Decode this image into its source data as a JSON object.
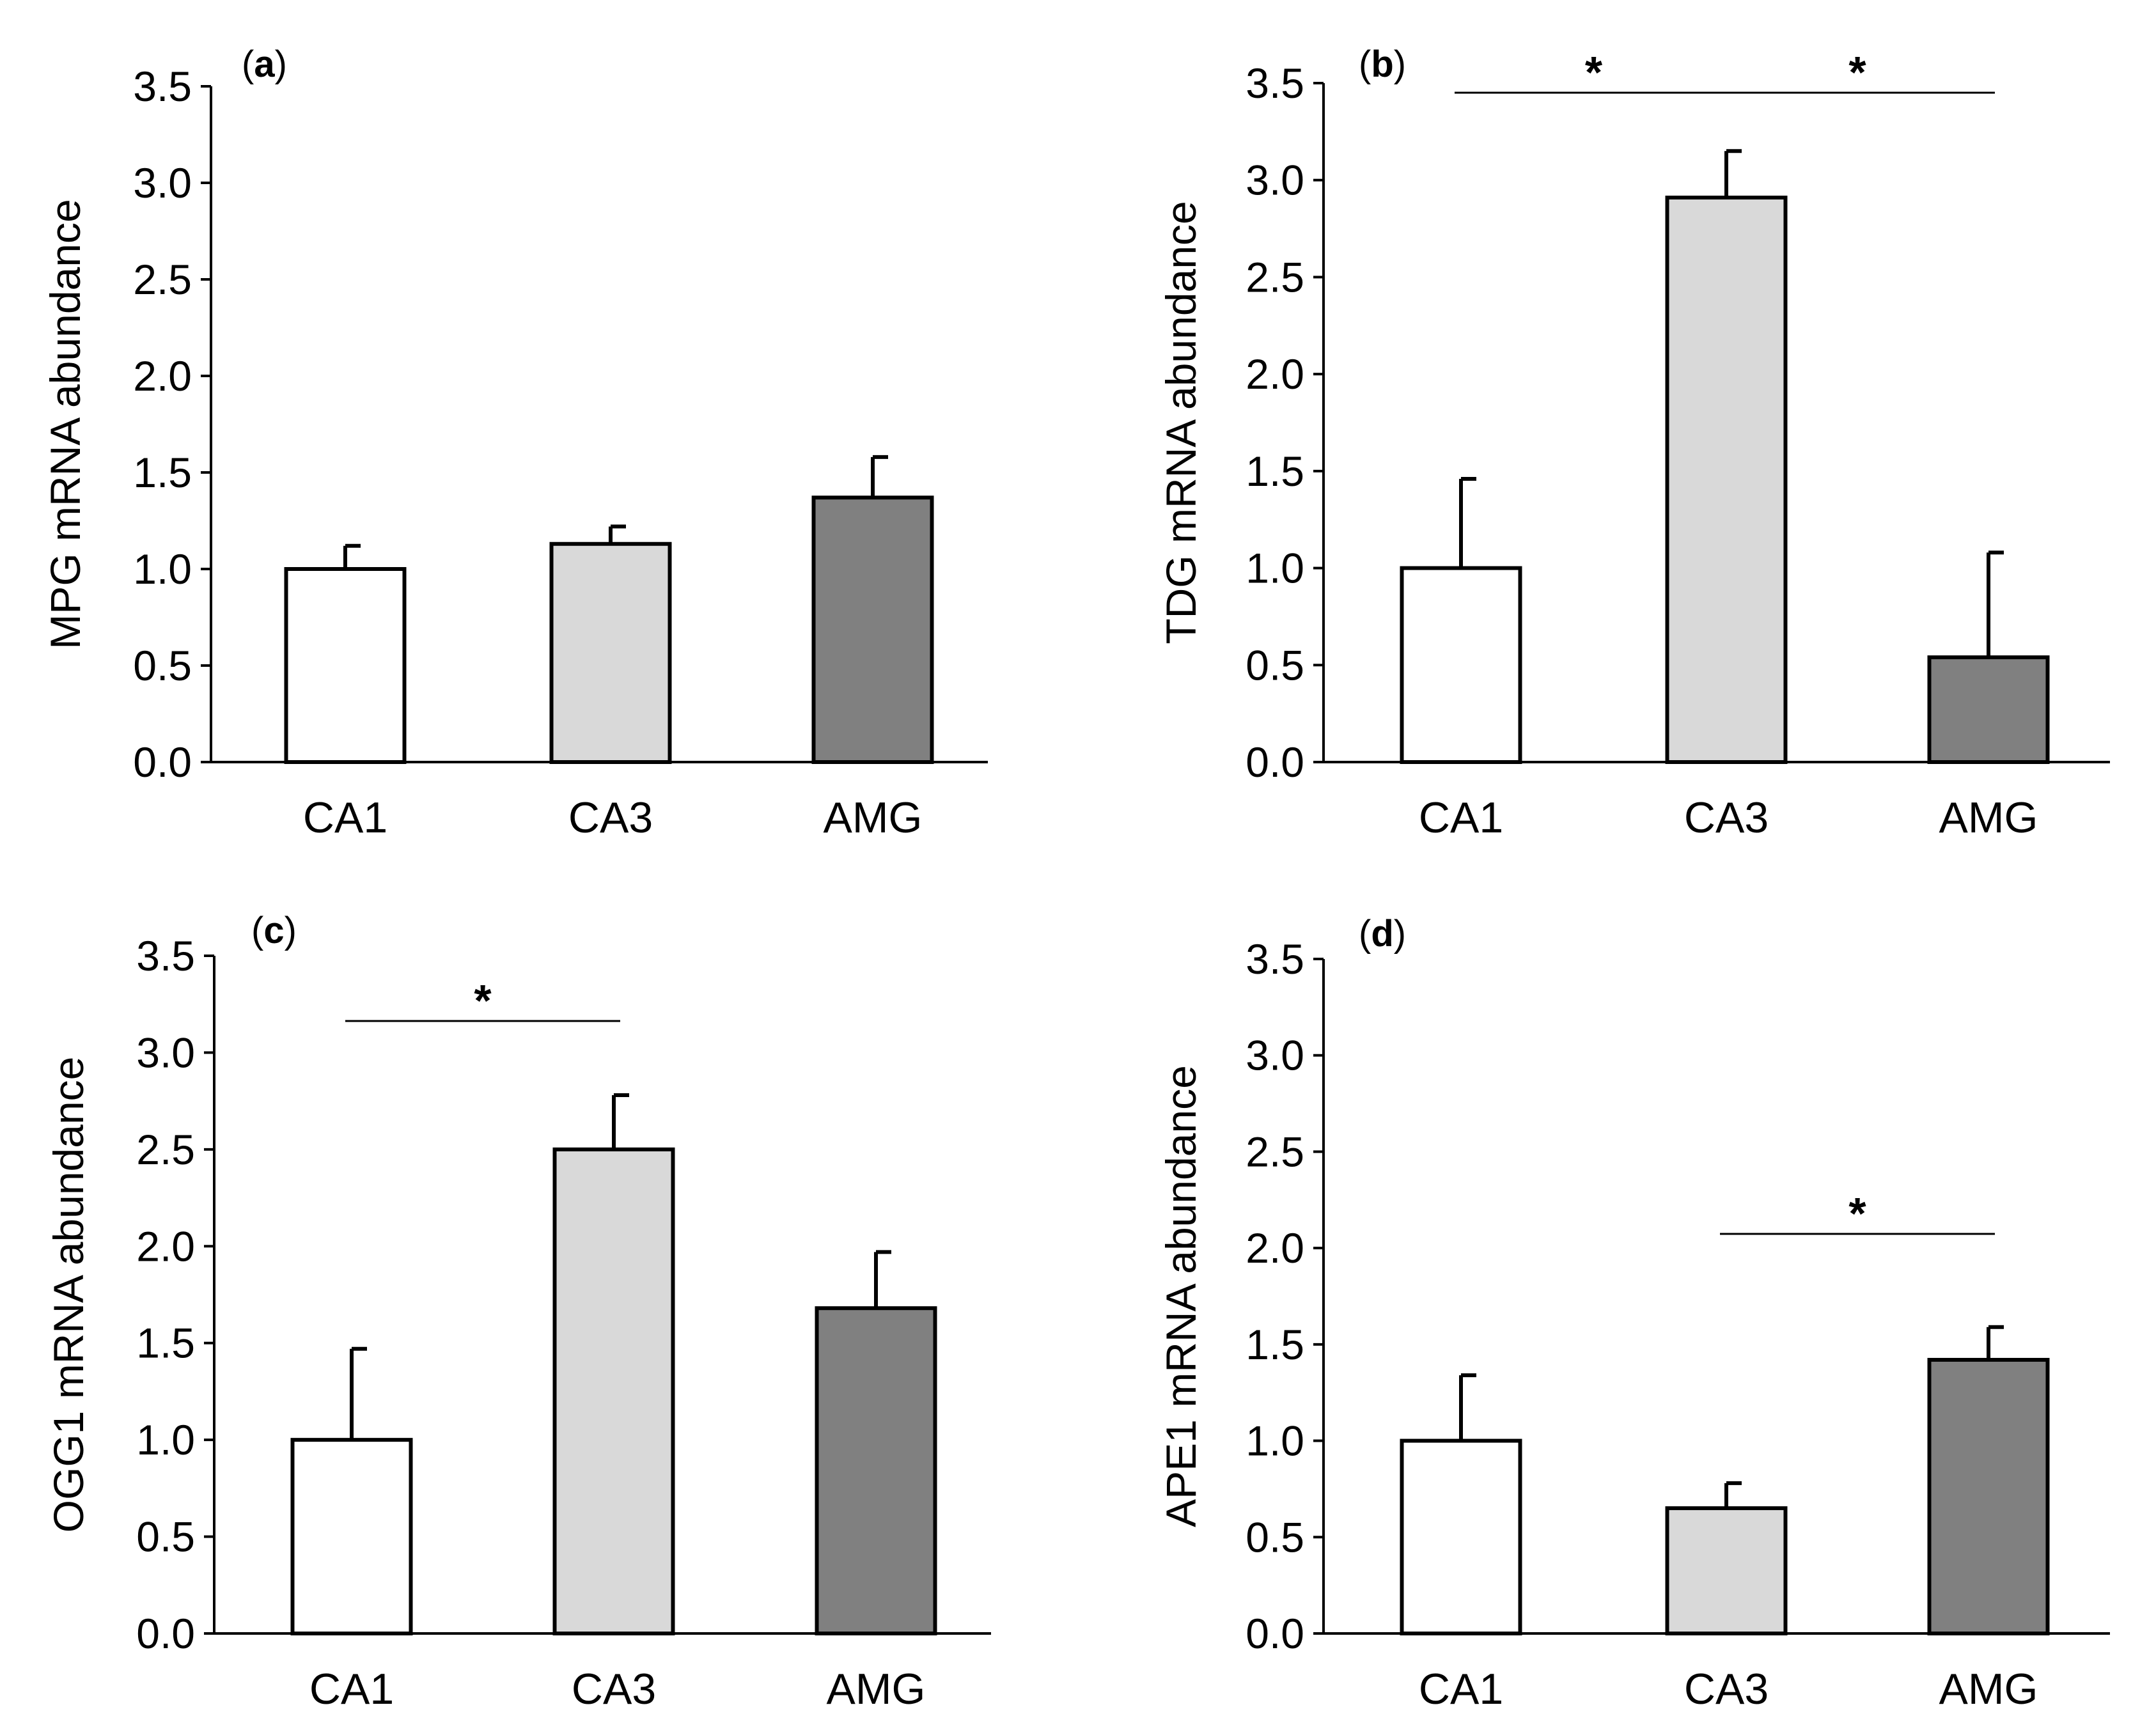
{
  "chart_data": [
    {
      "type": "bar",
      "panel": "a",
      "ylabel": "MPG mRNA abundance",
      "ylim": [
        0,
        3.5
      ],
      "yticks": [
        "0.0",
        "0.5",
        "1.0",
        "1.5",
        "2.0",
        "2.5",
        "3.0",
        "3.5"
      ],
      "categories": [
        "CA1",
        "CA3",
        "AMG"
      ],
      "values": [
        1.0,
        1.13,
        1.37
      ],
      "errors": [
        0.12,
        0.09,
        0.21
      ],
      "colors": [
        "#ffffff",
        "#d9d9d9",
        "#808080"
      ],
      "significance": []
    },
    {
      "type": "bar",
      "panel": "b",
      "ylabel": "TDG mRNA abundance",
      "ylim": [
        0,
        3.5
      ],
      "yticks": [
        "0.0",
        "0.5",
        "1.0",
        "1.5",
        "2.0",
        "2.5",
        "3.0",
        "3.5"
      ],
      "categories": [
        "CA1",
        "CA3",
        "AMG"
      ],
      "values": [
        1.0,
        2.91,
        0.54
      ],
      "errors": [
        0.46,
        0.24,
        0.54
      ],
      "colors": [
        "#ffffff",
        "#d9d9d9",
        "#808080"
      ],
      "significance": [
        {
          "from": 0,
          "to": 1,
          "label": "*"
        },
        {
          "from": 1,
          "to": 2,
          "label": "*"
        }
      ]
    },
    {
      "type": "bar",
      "panel": "c",
      "ylabel": "OGG1 mRNA abundance",
      "ylim": [
        0,
        3.5
      ],
      "yticks": [
        "0.0",
        "0.5",
        "1.0",
        "1.5",
        "2.0",
        "2.5",
        "3.0",
        "3.5"
      ],
      "categories": [
        "CA1",
        "CA3",
        "AMG"
      ],
      "values": [
        1.0,
        2.5,
        1.68
      ],
      "errors": [
        0.47,
        0.28,
        0.29
      ],
      "colors": [
        "#ffffff",
        "#d9d9d9",
        "#808080"
      ],
      "significance": [
        {
          "from": 0,
          "to": 1,
          "label": "*"
        }
      ]
    },
    {
      "type": "bar",
      "panel": "d",
      "ylabel": "APE1 mRNA abundance",
      "ylim": [
        0,
        3.5
      ],
      "yticks": [
        "0.0",
        "0.5",
        "1.0",
        "1.5",
        "2.0",
        "2.5",
        "3.0",
        "3.5"
      ],
      "categories": [
        "CA1",
        "CA3",
        "AMG"
      ],
      "values": [
        1.0,
        0.65,
        1.42
      ],
      "errors": [
        0.34,
        0.13,
        0.17
      ],
      "colors": [
        "#ffffff",
        "#d9d9d9",
        "#808080"
      ],
      "significance": [
        {
          "from": 1,
          "to": 2,
          "label": "*"
        }
      ]
    }
  ]
}
